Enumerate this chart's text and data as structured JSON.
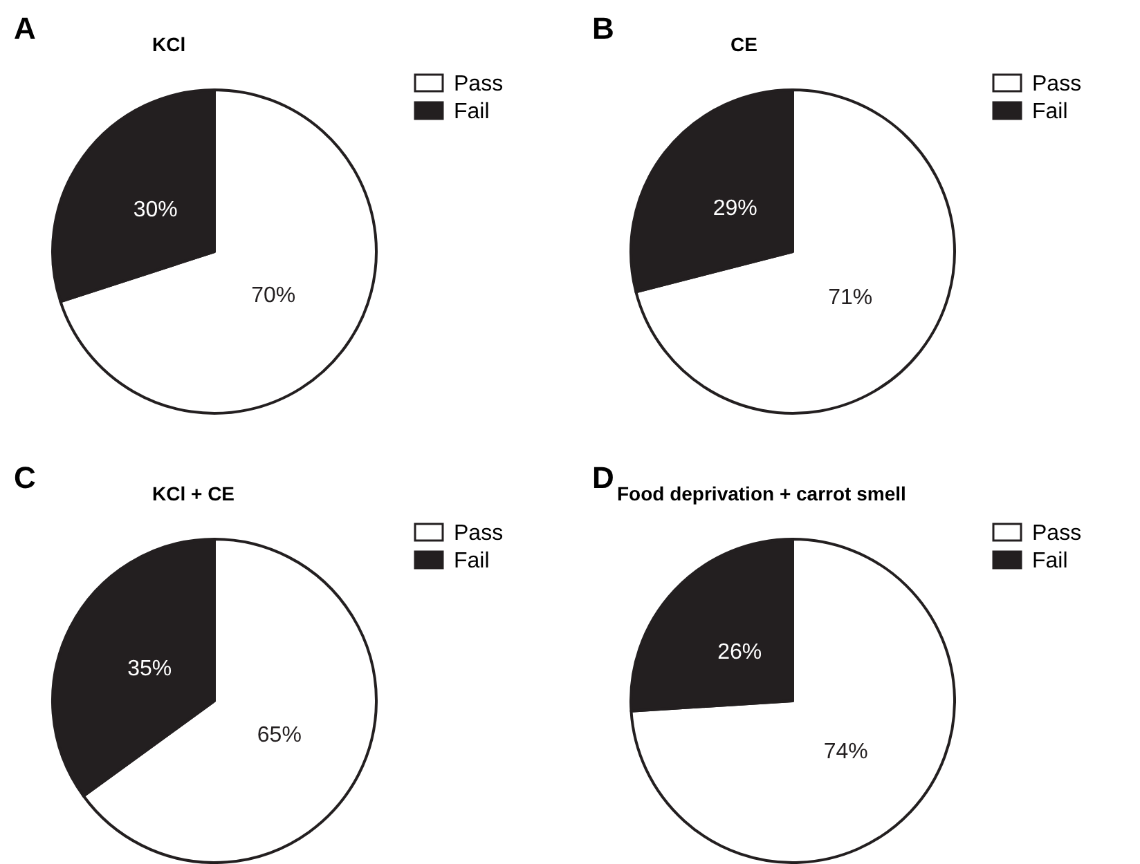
{
  "chart_data": [
    {
      "type": "pie",
      "title": "KCl",
      "annotations": [
        "A"
      ],
      "categories": [
        "Pass",
        "Fail"
      ],
      "values": [
        70,
        30
      ],
      "value_labels": [
        "70%",
        "30%"
      ],
      "colors": [
        "#ffffff",
        "#231f20"
      ],
      "legend": "top right"
    },
    {
      "type": "pie",
      "title": "CE",
      "annotations": [
        "B"
      ],
      "categories": [
        "Pass",
        "Fail"
      ],
      "values": [
        71,
        29
      ],
      "value_labels": [
        "71%",
        "29%"
      ],
      "colors": [
        "#ffffff",
        "#231f20"
      ],
      "legend": "top right"
    },
    {
      "type": "pie",
      "title": "KCl + CE",
      "annotations": [
        "C"
      ],
      "categories": [
        "Pass",
        "Fail"
      ],
      "values": [
        65,
        35
      ],
      "value_labels": [
        "65%",
        "35%"
      ],
      "colors": [
        "#ffffff",
        "#231f20"
      ],
      "legend": "top right"
    },
    {
      "type": "pie",
      "title": "Food deprivation + carrot smell",
      "annotations": [
        "D"
      ],
      "categories": [
        "Pass",
        "Fail"
      ],
      "values": [
        74,
        26
      ],
      "value_labels": [
        "74%",
        "26%"
      ],
      "colors": [
        "#ffffff",
        "#231f20"
      ],
      "legend": "top right"
    }
  ]
}
